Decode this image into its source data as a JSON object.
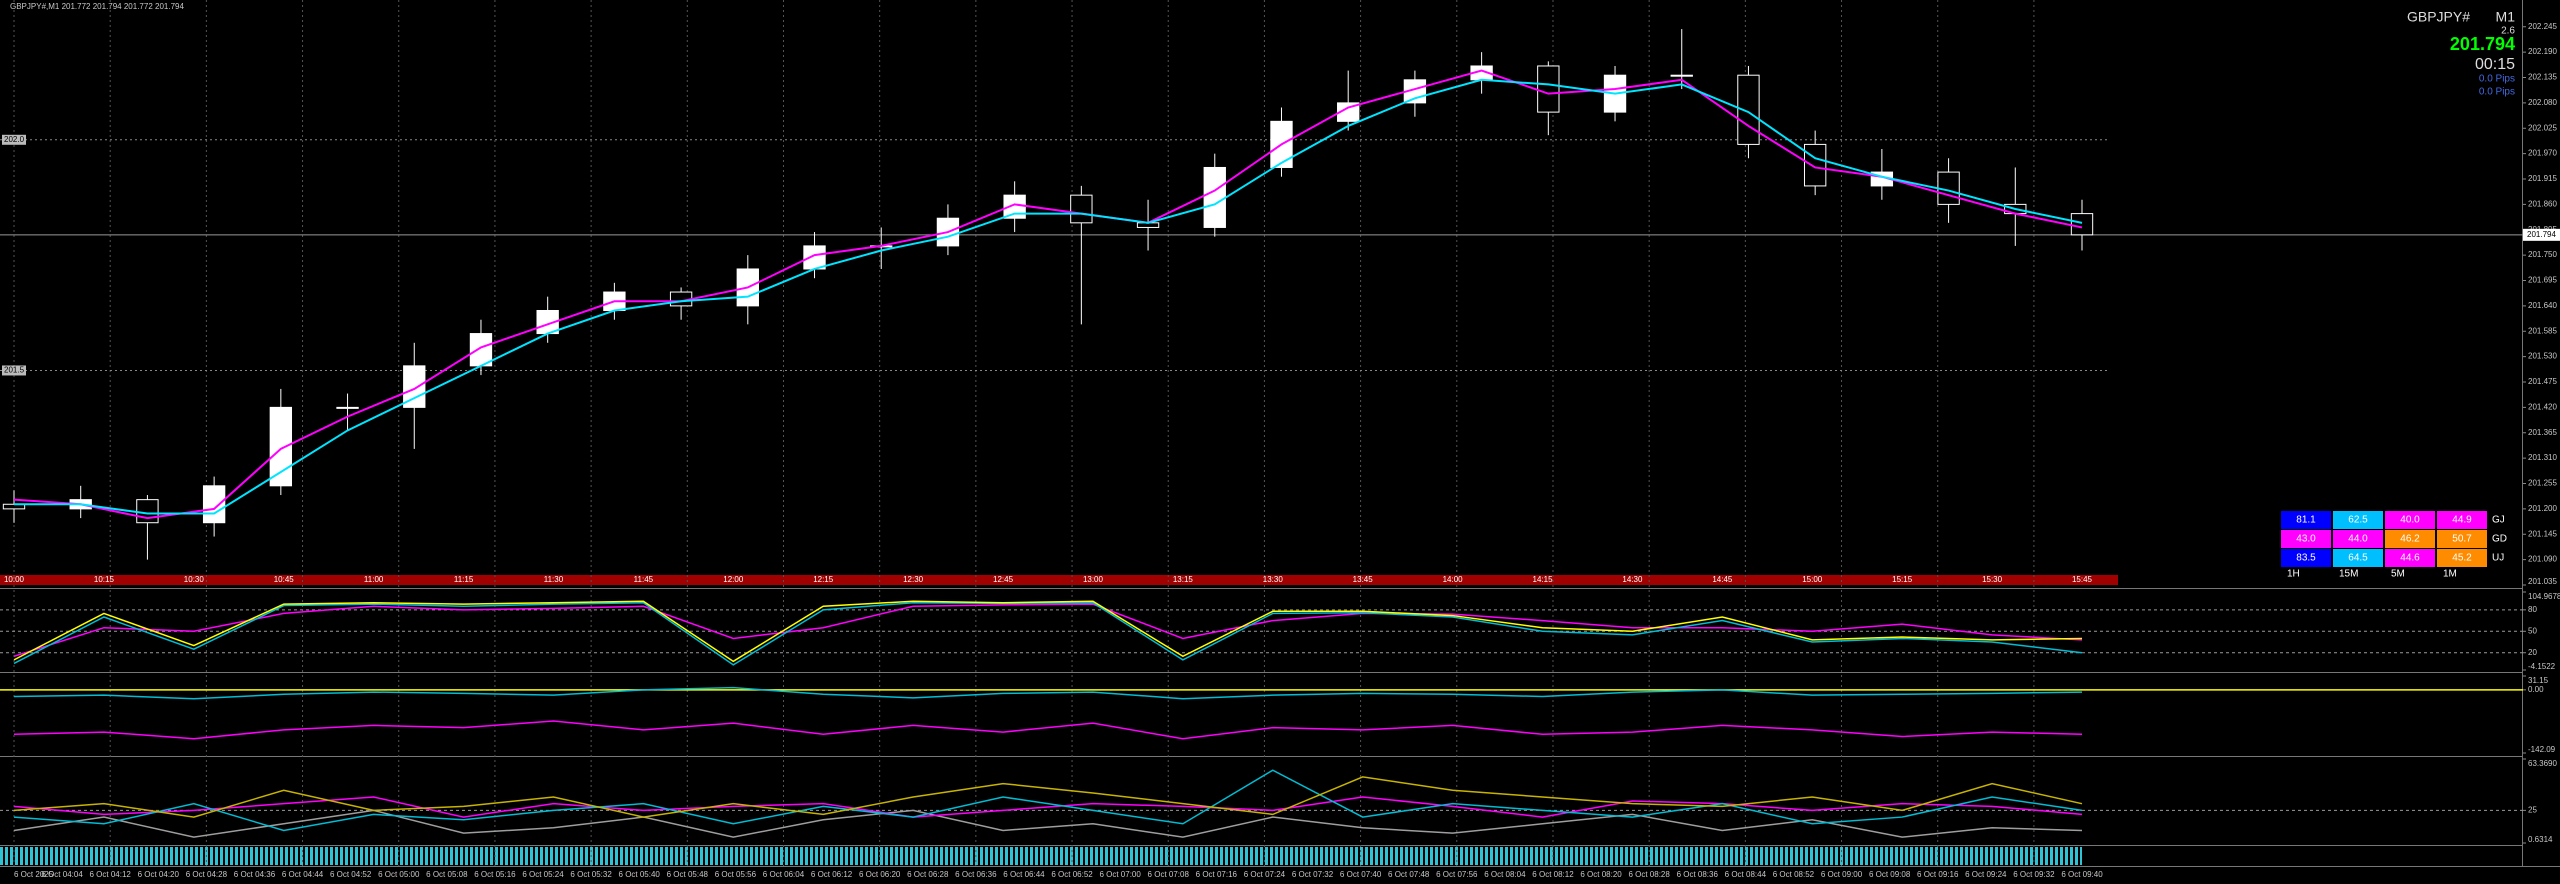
{
  "header": {
    "text": "GBPJPY#,M1  201.772 201.794 201.772 201.794"
  },
  "info_panel": {
    "symbol": "GBPJPY#",
    "timeframe": "M1",
    "spread": "2.6",
    "price": "201.794",
    "timer": "00:15",
    "pips": [
      "0.0 Pips",
      "0.0 Pips"
    ]
  },
  "chart_data": [
    {
      "type": "candlestick",
      "ohlc": [
        [
          201.21,
          201.24,
          201.17,
          201.2
        ],
        [
          201.2,
          201.25,
          201.18,
          201.22
        ],
        [
          201.22,
          201.23,
          201.09,
          201.17
        ],
        [
          201.17,
          201.27,
          201.14,
          201.25
        ],
        [
          201.25,
          201.46,
          201.23,
          201.42
        ],
        [
          201.42,
          201.45,
          201.37,
          201.42
        ],
        [
          201.42,
          201.56,
          201.33,
          201.51
        ],
        [
          201.51,
          201.61,
          201.49,
          201.58
        ],
        [
          201.58,
          201.66,
          201.56,
          201.63
        ],
        [
          201.63,
          201.69,
          201.61,
          201.67
        ],
        [
          201.67,
          201.68,
          201.61,
          201.64
        ],
        [
          201.64,
          201.75,
          201.6,
          201.72
        ],
        [
          201.72,
          201.8,
          201.7,
          201.77
        ],
        [
          201.77,
          201.81,
          201.72,
          201.77
        ],
        [
          201.77,
          201.86,
          201.75,
          201.83
        ],
        [
          201.83,
          201.91,
          201.8,
          201.88
        ],
        [
          201.88,
          201.9,
          201.6,
          201.82
        ],
        [
          201.82,
          201.87,
          201.76,
          201.81
        ],
        [
          201.81,
          201.97,
          201.79,
          201.94
        ],
        [
          201.94,
          202.07,
          201.92,
          202.04
        ],
        [
          202.04,
          202.15,
          202.02,
          202.08
        ],
        [
          202.08,
          202.15,
          202.05,
          202.13
        ],
        [
          202.13,
          202.19,
          202.1,
          202.16
        ],
        [
          202.16,
          202.17,
          202.01,
          202.06
        ],
        [
          202.06,
          202.16,
          202.04,
          202.14
        ],
        [
          202.14,
          202.24,
          202.11,
          202.14
        ],
        [
          202.14,
          202.16,
          201.96,
          201.99
        ],
        [
          201.99,
          202.02,
          201.88,
          201.9
        ],
        [
          201.9,
          201.98,
          201.87,
          201.93
        ],
        [
          201.93,
          201.96,
          201.82,
          201.86
        ],
        [
          201.86,
          201.94,
          201.77,
          201.84
        ],
        [
          201.84,
          201.87,
          201.76,
          201.794
        ]
      ],
      "series": [
        {
          "color": "#ff00ff",
          "values": [
            201.22,
            201.21,
            201.18,
            201.2,
            201.33,
            201.4,
            201.46,
            201.55,
            201.6,
            201.65,
            201.65,
            201.68,
            201.75,
            201.77,
            201.8,
            201.86,
            201.84,
            201.82,
            201.89,
            201.99,
            202.07,
            202.11,
            202.15,
            202.1,
            202.11,
            202.13,
            202.03,
            201.94,
            201.92,
            201.88,
            201.84,
            201.81
          ]
        },
        {
          "color": "#00e5ff",
          "values": [
            201.21,
            201.21,
            201.19,
            201.19,
            201.28,
            201.37,
            201.44,
            201.51,
            201.58,
            201.63,
            201.65,
            201.66,
            201.72,
            201.76,
            201.79,
            201.84,
            201.84,
            201.82,
            201.86,
            201.95,
            202.03,
            202.09,
            202.13,
            202.12,
            202.1,
            202.12,
            202.06,
            201.96,
            201.92,
            201.89,
            201.85,
            201.82
          ]
        }
      ],
      "bull_color": "#ffffff",
      "bear_color": "#000000",
      "current_price": 201.794,
      "levels": [
        {
          "value": 202.0,
          "label": "202.0"
        },
        {
          "value": 201.5,
          "label": "201.5"
        }
      ],
      "ylim": [
        201.035,
        202.303
      ],
      "yticks": [
        202.245,
        {
          "value": 202.19,
          "label": "202.190"
        },
        202.135,
        {
          "value": 202.08,
          "label": "202.080"
        },
        202.025,
        {
          "value": 201.97,
          "label": "201.970"
        },
        201.915,
        {
          "value": 201.86,
          "label": "201.860"
        },
        201.805,
        {
          "value": 201.75,
          "label": "201.750"
        },
        201.695,
        {
          "value": 201.64,
          "label": "201.640"
        },
        201.585,
        {
          "value": 201.53,
          "label": "201.530"
        },
        201.475,
        {
          "value": 201.42,
          "label": "201.420"
        },
        201.365,
        {
          "value": 201.31,
          "label": "201.310"
        },
        201.255,
        {
          "value": 201.2,
          "label": "201.200"
        },
        201.145,
        {
          "value": 201.09,
          "label": "201.090"
        },
        201.035
      ],
      "time_labels": [
        "10:00",
        "10:15",
        "10:30",
        "10:45",
        "11:00",
        "11:15",
        "11:30",
        "11:45",
        "12:00",
        "12:15",
        "12:30",
        "12:45",
        "13:00",
        "13:15",
        "13:30",
        "13:45",
        "14:00",
        "14:15",
        "14:30",
        "14:45",
        "15:00",
        "15:15",
        "15:30",
        "15:45"
      ],
      "grid": true
    },
    {
      "type": "line",
      "series": [
        {
          "color": "#ff00ff",
          "values": [
            15,
            55,
            50,
            75,
            85,
            80,
            82,
            85,
            40,
            55,
            85,
            87,
            88,
            40,
            65,
            75,
            74,
            65,
            55,
            55,
            50,
            60,
            45,
            38
          ]
        },
        {
          "color": "#00bcd4",
          "values": [
            5,
            70,
            25,
            86,
            88,
            85,
            88,
            90,
            3,
            80,
            90,
            89,
            90,
            10,
            75,
            76,
            70,
            50,
            45,
            65,
            35,
            40,
            35,
            20
          ]
        },
        {
          "color": "#ffff00",
          "values": [
            10,
            75,
            30,
            88,
            90,
            88,
            90,
            92,
            8,
            85,
            92,
            90,
            92,
            15,
            78,
            78,
            72,
            55,
            50,
            70,
            38,
            42,
            38,
            40
          ]
        }
      ],
      "ylim": [
        -4.1522,
        104.9678
      ],
      "yticks": [
        104.9678,
        80,
        50,
        20,
        -4.1522
      ],
      "grid_color": "#9a9a9a"
    },
    {
      "type": "line",
      "series": [
        {
          "color": "#ff00ff",
          "values": [
            -100,
            -95,
            -110,
            -90,
            -80,
            -85,
            -70,
            -90,
            -75,
            -100,
            -80,
            -95,
            -75,
            -110,
            -85,
            -90,
            -80,
            -100,
            -95,
            -80,
            -90,
            -105,
            -95,
            -100
          ]
        },
        {
          "color": "#00bcd4",
          "values": [
            -15,
            -12,
            -20,
            -10,
            -5,
            -8,
            -12,
            0,
            5,
            -10,
            -18,
            -8,
            -5,
            -20,
            -12,
            -8,
            -10,
            -15,
            -5,
            0,
            -12,
            -10,
            -8,
            -5
          ]
        }
      ],
      "ylim": [
        -142.09,
        31.15
      ],
      "yticks": [
        31.15,
        {
          "value": 0,
          "label": "0.00"
        },
        -142.09
      ],
      "grid_color": "#ffff00"
    },
    {
      "type": "line",
      "series": [
        {
          "color": "#9e9e9e",
          "values": [
            10,
            20,
            5,
            15,
            25,
            8,
            12,
            20,
            5,
            18,
            25,
            10,
            15,
            5,
            20,
            12,
            8,
            15,
            22,
            10,
            18,
            5,
            12,
            10
          ]
        },
        {
          "color": "#ff00ff",
          "values": [
            28,
            22,
            25,
            30,
            35,
            20,
            30,
            25,
            28,
            30,
            20,
            25,
            30,
            28,
            25,
            35,
            28,
            20,
            32,
            30,
            25,
            30,
            28,
            22
          ]
        },
        {
          "color": "#00bcd4",
          "values": [
            20,
            15,
            30,
            10,
            22,
            18,
            25,
            30,
            15,
            28,
            20,
            35,
            25,
            15,
            55,
            20,
            30,
            25,
            20,
            30,
            15,
            20,
            35,
            25
          ]
        },
        {
          "color": "#c8b400",
          "values": [
            25,
            30,
            20,
            40,
            25,
            28,
            35,
            20,
            30,
            22,
            35,
            45,
            38,
            30,
            22,
            50,
            40,
            35,
            30,
            28,
            35,
            25,
            45,
            30
          ]
        }
      ],
      "ylim": [
        0.6314,
        63.369
      ],
      "yticks": [
        {
          "value": 63.369,
          "label": "63.3690"
        },
        25,
        0.6314
      ],
      "grid_color": "#9a9a9a"
    }
  ],
  "strength_table": {
    "columns": [
      "1H",
      "15M",
      "5M",
      "1M"
    ],
    "rows": [
      {
        "label": "GJ",
        "cells": [
          {
            "text": "81.1",
            "color": "#0000ff"
          },
          {
            "text": "62.5",
            "color": "#00bfff"
          },
          {
            "text": "40.0",
            "color": "#ff00ff"
          },
          {
            "text": "44.9",
            "color": "#ff00ff"
          }
        ]
      },
      {
        "label": "GD",
        "cells": [
          {
            "text": "43.0",
            "color": "#ff00ff"
          },
          {
            "text": "44.0",
            "color": "#ff00ff"
          },
          {
            "text": "46.2",
            "color": "#ff8c00"
          },
          {
            "text": "50.7",
            "color": "#ff8c00"
          }
        ]
      },
      {
        "label": "UJ",
        "cells": [
          {
            "text": "83.5",
            "color": "#0000ff"
          },
          {
            "text": "64.5",
            "color": "#00bfff"
          },
          {
            "text": "44.6",
            "color": "#ff00ff"
          },
          {
            "text": "45.2",
            "color": "#ff8c00"
          }
        ]
      }
    ]
  },
  "time_axis": {
    "labels": [
      "6 Oct 2025",
      "6 Oct 04:04",
      "6 Oct 04:12",
      "6 Oct 04:20",
      "6 Oct 04:28",
      "6 Oct 04:36",
      "6 Oct 04:44",
      "6 Oct 04:52",
      "6 Oct 05:00",
      "6 Oct 05:08",
      "6 Oct 05:16",
      "6 Oct 05:24",
      "6 Oct 05:32",
      "6 Oct 05:40",
      "6 Oct 05:48",
      "6 Oct 05:56",
      "6 Oct 06:04",
      "6 Oct 06:12",
      "6 Oct 06:20",
      "6 Oct 06:28",
      "6 Oct 06:36",
      "6 Oct 06:44",
      "6 Oct 06:52",
      "6 Oct 07:00",
      "6 Oct 07:08",
      "6 Oct 07:16",
      "6 Oct 07:24",
      "6 Oct 07:32",
      "6 Oct 07:40",
      "6 Oct 07:48",
      "6 Oct 07:56",
      "6 Oct 08:04",
      "6 Oct 08:12",
      "6 Oct 08:20",
      "6 Oct 08:28",
      "6 Oct 08:36",
      "6 Oct 08:44",
      "6 Oct 08:52",
      "6 Oct 09:00",
      "6 Oct 09:08",
      "6 Oct 09:16",
      "6 Oct 09:24",
      "6 Oct 09:32",
      "6 Oct 09:40"
    ]
  }
}
